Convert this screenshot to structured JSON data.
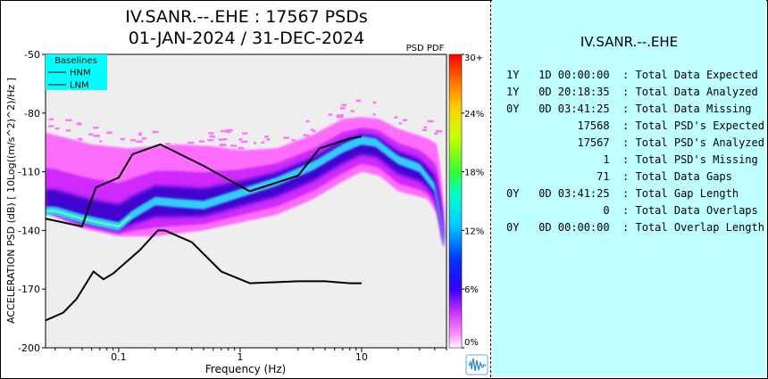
{
  "header": {
    "title_line1": "IV.SANR.--.EHE : 17567 PSDs",
    "title_line2": "01-JAN-2024 / 31-DEC-2024"
  },
  "stats_panel": {
    "station": "IV.SANR.--.EHE",
    "lines": [
      "1Y   1D 00:00:00  : Total Data Expected",
      "1Y   0D 20:18:35  : Total Data Analyzed",
      "0Y   0D 03:41:25  : Total Data Missing",
      "           17568  : Total PSD's Expected",
      "           17567  : Total PSD's Analyzed",
      "               1  : Total PSD's Missing",
      "              71  : Total Data Gaps",
      "0Y   0D 03:41:25  : Total Gap Length",
      "               0  : Total Data Overlaps",
      "0Y   0D 00:00:00  : Total Overlap Length"
    ]
  },
  "chart_data": {
    "type": "heatmap",
    "title": "IV.SANR.--.EHE : 17567 PSDs",
    "subtitle": "01-JAN-2024 / 31-DEC-2024",
    "xlabel": "Frequency (Hz)",
    "ylabel": "ACCELERATION PSD (dB) [ 10Log((m/s^2)^2)/Hz ]",
    "x_scale": "log",
    "xlim": [
      0.025,
      50
    ],
    "ylim": [
      -200,
      -50
    ],
    "x_ticks": [
      {
        "value": 0.1,
        "label": "0.1"
      },
      {
        "value": 1,
        "label": "1"
      },
      {
        "value": 10,
        "label": "10"
      }
    ],
    "y_ticks": [
      -200,
      -170,
      -140,
      -110,
      -80,
      -50
    ],
    "colorbar": {
      "label": "PSD PDF",
      "ticks": [
        "0%",
        "6%",
        "12%",
        "18%",
        "24%",
        "30+"
      ],
      "range": [
        0,
        30
      ]
    },
    "legend": {
      "title": "Baselines",
      "entries": [
        "HNM",
        "LNM"
      ],
      "position": "top-left"
    },
    "series": [
      {
        "name": "HNM",
        "points": [
          [
            0.025,
            -134
          ],
          [
            0.05,
            -138
          ],
          [
            0.065,
            -118
          ],
          [
            0.1,
            -113
          ],
          [
            0.13,
            -101
          ],
          [
            0.22,
            -96
          ],
          [
            0.5,
            -107
          ],
          [
            1.2,
            -120
          ],
          [
            3,
            -112
          ],
          [
            4.5,
            -98
          ],
          [
            8,
            -93
          ],
          [
            10,
            -92
          ]
        ]
      },
      {
        "name": "LNM",
        "points": [
          [
            0.025,
            -186
          ],
          [
            0.035,
            -182
          ],
          [
            0.045,
            -175
          ],
          [
            0.062,
            -161
          ],
          [
            0.075,
            -165
          ],
          [
            0.09,
            -162
          ],
          [
            0.15,
            -150
          ],
          [
            0.21,
            -140
          ],
          [
            0.24,
            -140
          ],
          [
            0.4,
            -146
          ],
          [
            0.7,
            -161
          ],
          [
            1.2,
            -167
          ],
          [
            3,
            -166
          ],
          [
            5,
            -166
          ],
          [
            8,
            -167
          ],
          [
            10,
            -167
          ]
        ]
      }
    ],
    "density": {
      "description": "PDF distribution of PSD power values",
      "mode_curve": [
        [
          0.03,
          -130
        ],
        [
          0.05,
          -134
        ],
        [
          0.07,
          -136
        ],
        [
          0.1,
          -138
        ],
        [
          0.13,
          -132
        ],
        [
          0.2,
          -125
        ],
        [
          0.3,
          -126
        ],
        [
          0.5,
          -127
        ],
        [
          1,
          -121
        ],
        [
          2,
          -115
        ],
        [
          4,
          -107
        ],
        [
          7,
          -98
        ],
        [
          10,
          -94
        ],
        [
          13,
          -95
        ],
        [
          20,
          -104
        ],
        [
          30,
          -108
        ],
        [
          40,
          -118
        ],
        [
          45,
          -135
        ],
        [
          48,
          -148
        ]
      ],
      "upper_envelope": [
        [
          0.025,
          -90
        ],
        [
          0.06,
          -96
        ],
        [
          0.12,
          -98
        ],
        [
          0.3,
          -96
        ],
        [
          0.6,
          -97
        ],
        [
          1,
          -99
        ],
        [
          2,
          -98
        ],
        [
          4,
          -91
        ],
        [
          7,
          -83
        ],
        [
          10,
          -82
        ],
        [
          14,
          -83
        ],
        [
          20,
          -88
        ],
        [
          35,
          -93
        ],
        [
          42,
          -96
        ],
        [
          46,
          -115
        ],
        [
          49,
          -140
        ]
      ],
      "lower_envelope": [
        [
          0.025,
          -131
        ],
        [
          0.05,
          -139
        ],
        [
          0.1,
          -143
        ],
        [
          0.2,
          -143
        ],
        [
          0.5,
          -140
        ],
        [
          1,
          -136
        ],
        [
          2,
          -132
        ],
        [
          4,
          -124
        ],
        [
          7,
          -115
        ],
        [
          10,
          -110
        ],
        [
          14,
          -112
        ],
        [
          20,
          -120
        ],
        [
          35,
          -124
        ],
        [
          42,
          -132
        ],
        [
          46,
          -146
        ],
        [
          49,
          -152
        ]
      ]
    }
  },
  "colors": {
    "stats_bg": "#c0ffff",
    "plot_bg": "#eeeeee",
    "legend_bg": "#00ffff",
    "baseline": "#000000",
    "density_light": "#ff66ff",
    "density_mid": "#6600ff",
    "density_core": "#33ccff"
  }
}
